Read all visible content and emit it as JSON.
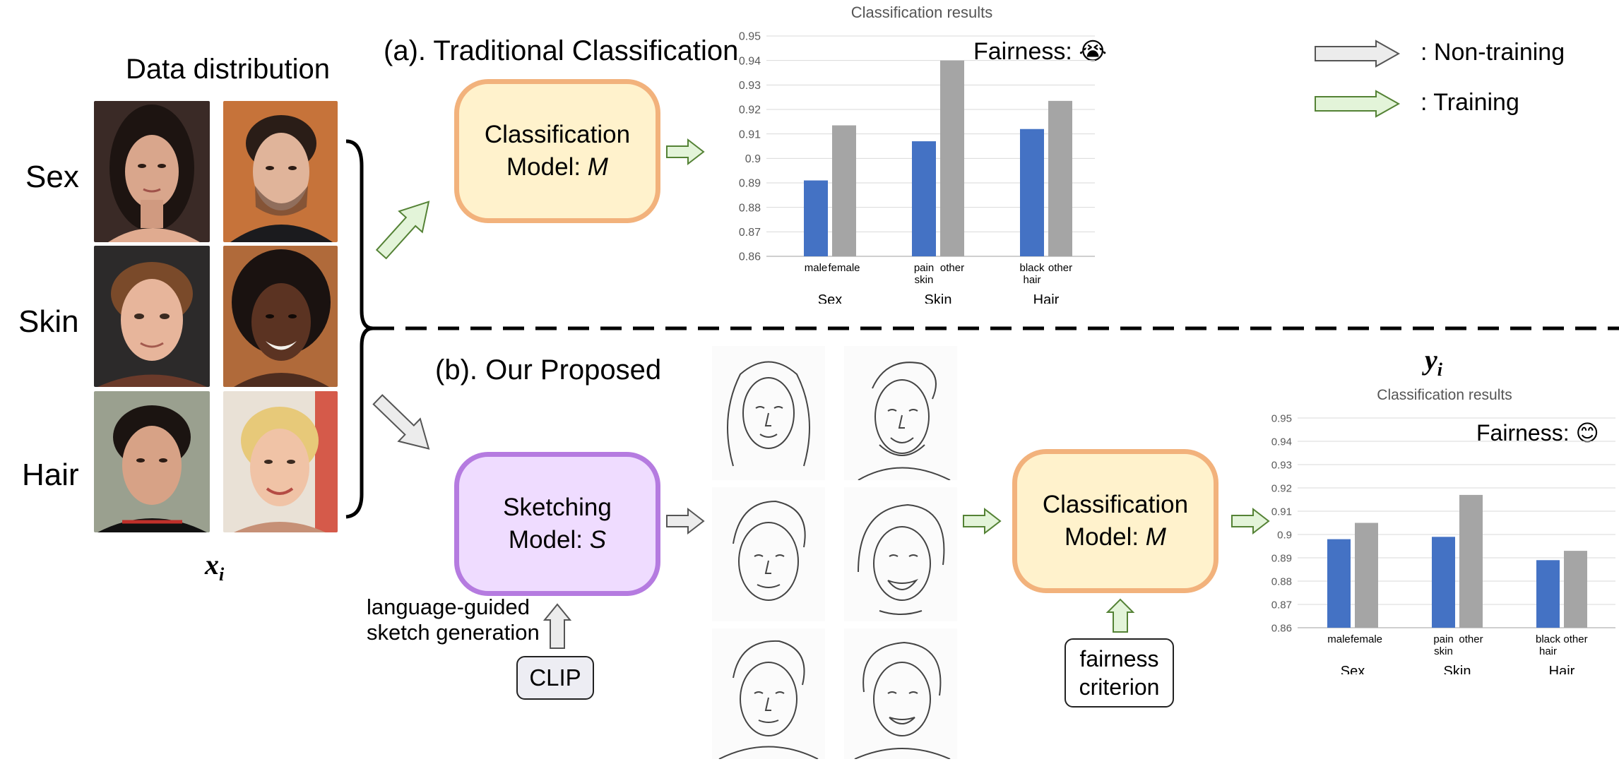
{
  "headings": {
    "data_distribution": "Data distribution",
    "traditional": "(a). Traditional Classification",
    "proposed": "(b). Our Proposed",
    "xi": "x",
    "xi_sub": "i",
    "yi": "y",
    "yi_sub": "i"
  },
  "row_labels": [
    "Sex",
    "Skin",
    "Hair"
  ],
  "models": {
    "classification_top": {
      "line1": "Classification",
      "line2": "Model: ",
      "var": "M"
    },
    "sketching": {
      "line1": "Sketching",
      "line2": "Model: ",
      "var": "S"
    },
    "classification_bottom": {
      "line1": "Classification",
      "line2": "Model: ",
      "var": "M"
    }
  },
  "annotations": {
    "lang_guided_1": "language-guided",
    "lang_guided_2": "sketch generation",
    "clip": "CLIP",
    "fairness_criterion_1": "fairness",
    "fairness_criterion_2": "criterion"
  },
  "legend": {
    "non_training": ": Non-training",
    "training": ": Training",
    "non_training_color": "#ececec",
    "training_color": "#e3f4d9"
  },
  "colors": {
    "blue": "#4472c4",
    "gray": "#a5a5a5",
    "orange_border": "#f2b27c",
    "orange_fill": "#fff2cc",
    "purple_border": "#b57be0",
    "purple_fill": "#efdcff"
  },
  "chart_data": [
    {
      "type": "bar",
      "title": "Classification results",
      "fairness_label": "Fairness: ",
      "fairness_emoji": "😭",
      "ylim": [
        0.86,
        0.95
      ],
      "yticks": [
        "0.86",
        "0.87",
        "0.88",
        "0.89",
        "0.9",
        "0.91",
        "0.92",
        "0.93",
        "0.94",
        "0.95"
      ],
      "groups": [
        {
          "name": "Sex",
          "labels": [
            [
              "male"
            ],
            [
              "female"
            ]
          ],
          "values": [
            0.891,
            0.9135
          ]
        },
        {
          "name": "Skin",
          "labels": [
            [
              "pain",
              "skin"
            ],
            [
              "other"
            ]
          ],
          "values": [
            0.907,
            0.94
          ]
        },
        {
          "name": "Hair",
          "labels": [
            [
              "black",
              "hair"
            ],
            [
              "other"
            ]
          ],
          "values": [
            0.912,
            0.9235
          ]
        }
      ],
      "grid": true
    },
    {
      "type": "bar",
      "title": "Classification results",
      "fairness_label": "Fairness: ",
      "fairness_emoji": "😊",
      "ylim": [
        0.86,
        0.95
      ],
      "yticks": [
        "0.86",
        "0.87",
        "0.88",
        "0.89",
        "0.9",
        "0.91",
        "0.92",
        "0.93",
        "0.94",
        "0.95"
      ],
      "groups": [
        {
          "name": "Sex",
          "labels": [
            [
              "male"
            ],
            [
              "female"
            ]
          ],
          "values": [
            0.898,
            0.905
          ]
        },
        {
          "name": "Skin",
          "labels": [
            [
              "pain",
              "skin"
            ],
            [
              "other"
            ]
          ],
          "values": [
            0.899,
            0.917
          ]
        },
        {
          "name": "Hair",
          "labels": [
            [
              "black",
              "hair"
            ],
            [
              "other"
            ]
          ],
          "values": [
            0.889,
            0.893
          ]
        }
      ],
      "grid": true
    }
  ]
}
